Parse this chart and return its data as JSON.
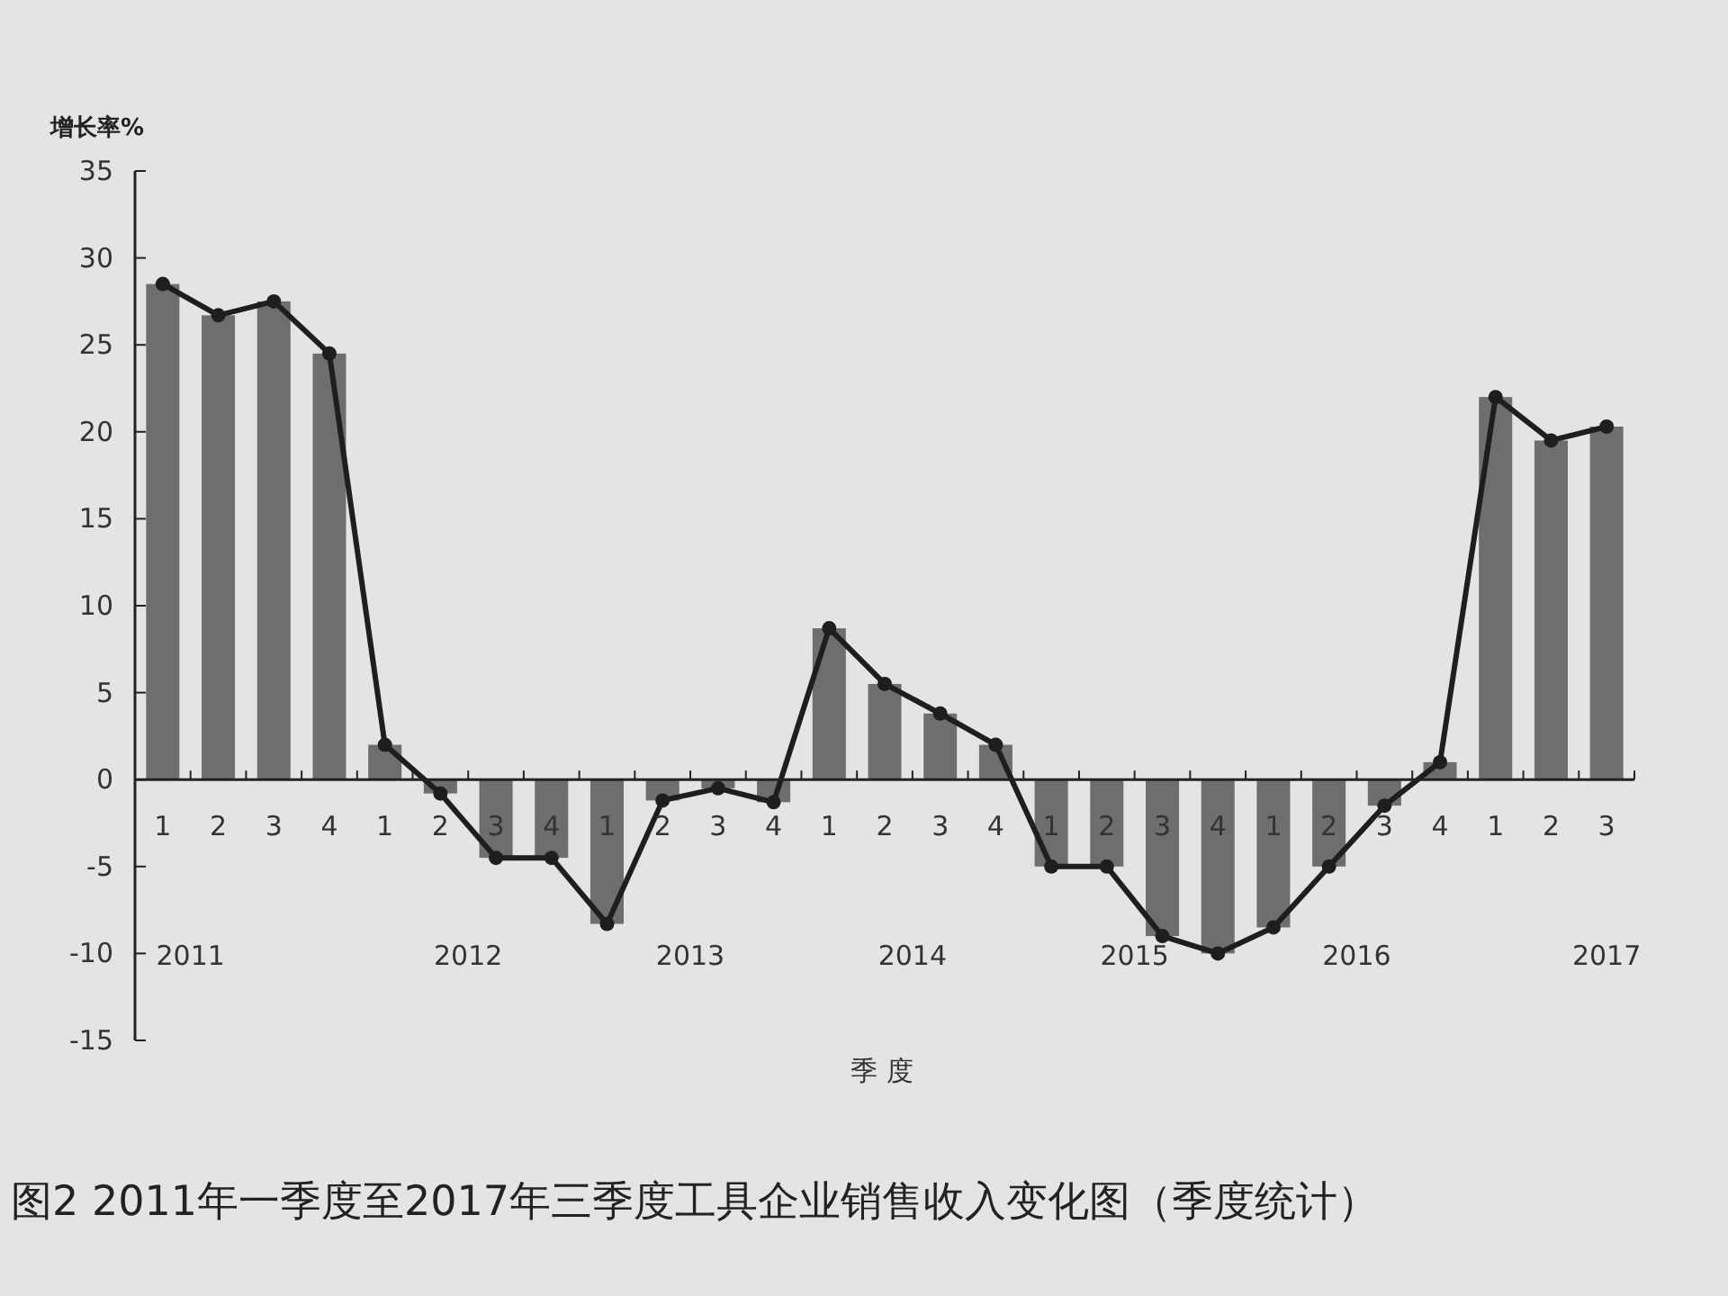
{
  "chart_data": {
    "type": "bar",
    "title": "图2  2011年一季度至2017年三季度工具企业销售收入变化图（季度统计）",
    "ylabel": "增长率%",
    "xlabel": "季  度",
    "categories": [
      "1",
      "2",
      "3",
      "4",
      "1",
      "2",
      "3",
      "4",
      "1",
      "2",
      "3",
      "4",
      "1",
      "2",
      "3",
      "4",
      "1",
      "2",
      "3",
      "4",
      "1",
      "2",
      "3",
      "4",
      "1",
      "2",
      "3"
    ],
    "series": [
      {
        "color": "#6e6e6e",
        "values": [
          28.5,
          26.7,
          27.5,
          24.5,
          2,
          -0.8,
          -4.5,
          -4.5,
          -8.3,
          -1.2,
          -0.5,
          -1.3,
          8.7,
          5.5,
          3.8,
          2,
          -5,
          -5,
          -9,
          -10,
          -8.5,
          -5,
          -1.5,
          1,
          22,
          19.5,
          20.3
        ]
      },
      {
        "type": "line",
        "color": "#1e1e1e",
        "marker": "circle",
        "values": [
          28.5,
          26.7,
          27.5,
          24.5,
          2,
          -0.8,
          -4.5,
          -4.5,
          -8.3,
          -1.2,
          -0.5,
          -1.3,
          8.7,
          5.5,
          3.8,
          2,
          -5,
          -5,
          -9,
          -10,
          -8.5,
          -5,
          -1.5,
          1,
          22,
          19.5,
          20.3
        ]
      }
    ],
    "ylim": [
      -15,
      35
    ],
    "yticks": [
      -15,
      -10,
      -5,
      0,
      5,
      10,
      15,
      20,
      25,
      30,
      35
    ],
    "annotations": [
      "2011",
      "2012",
      "2013",
      "2014",
      "2015",
      "2016",
      "2017"
    ]
  }
}
